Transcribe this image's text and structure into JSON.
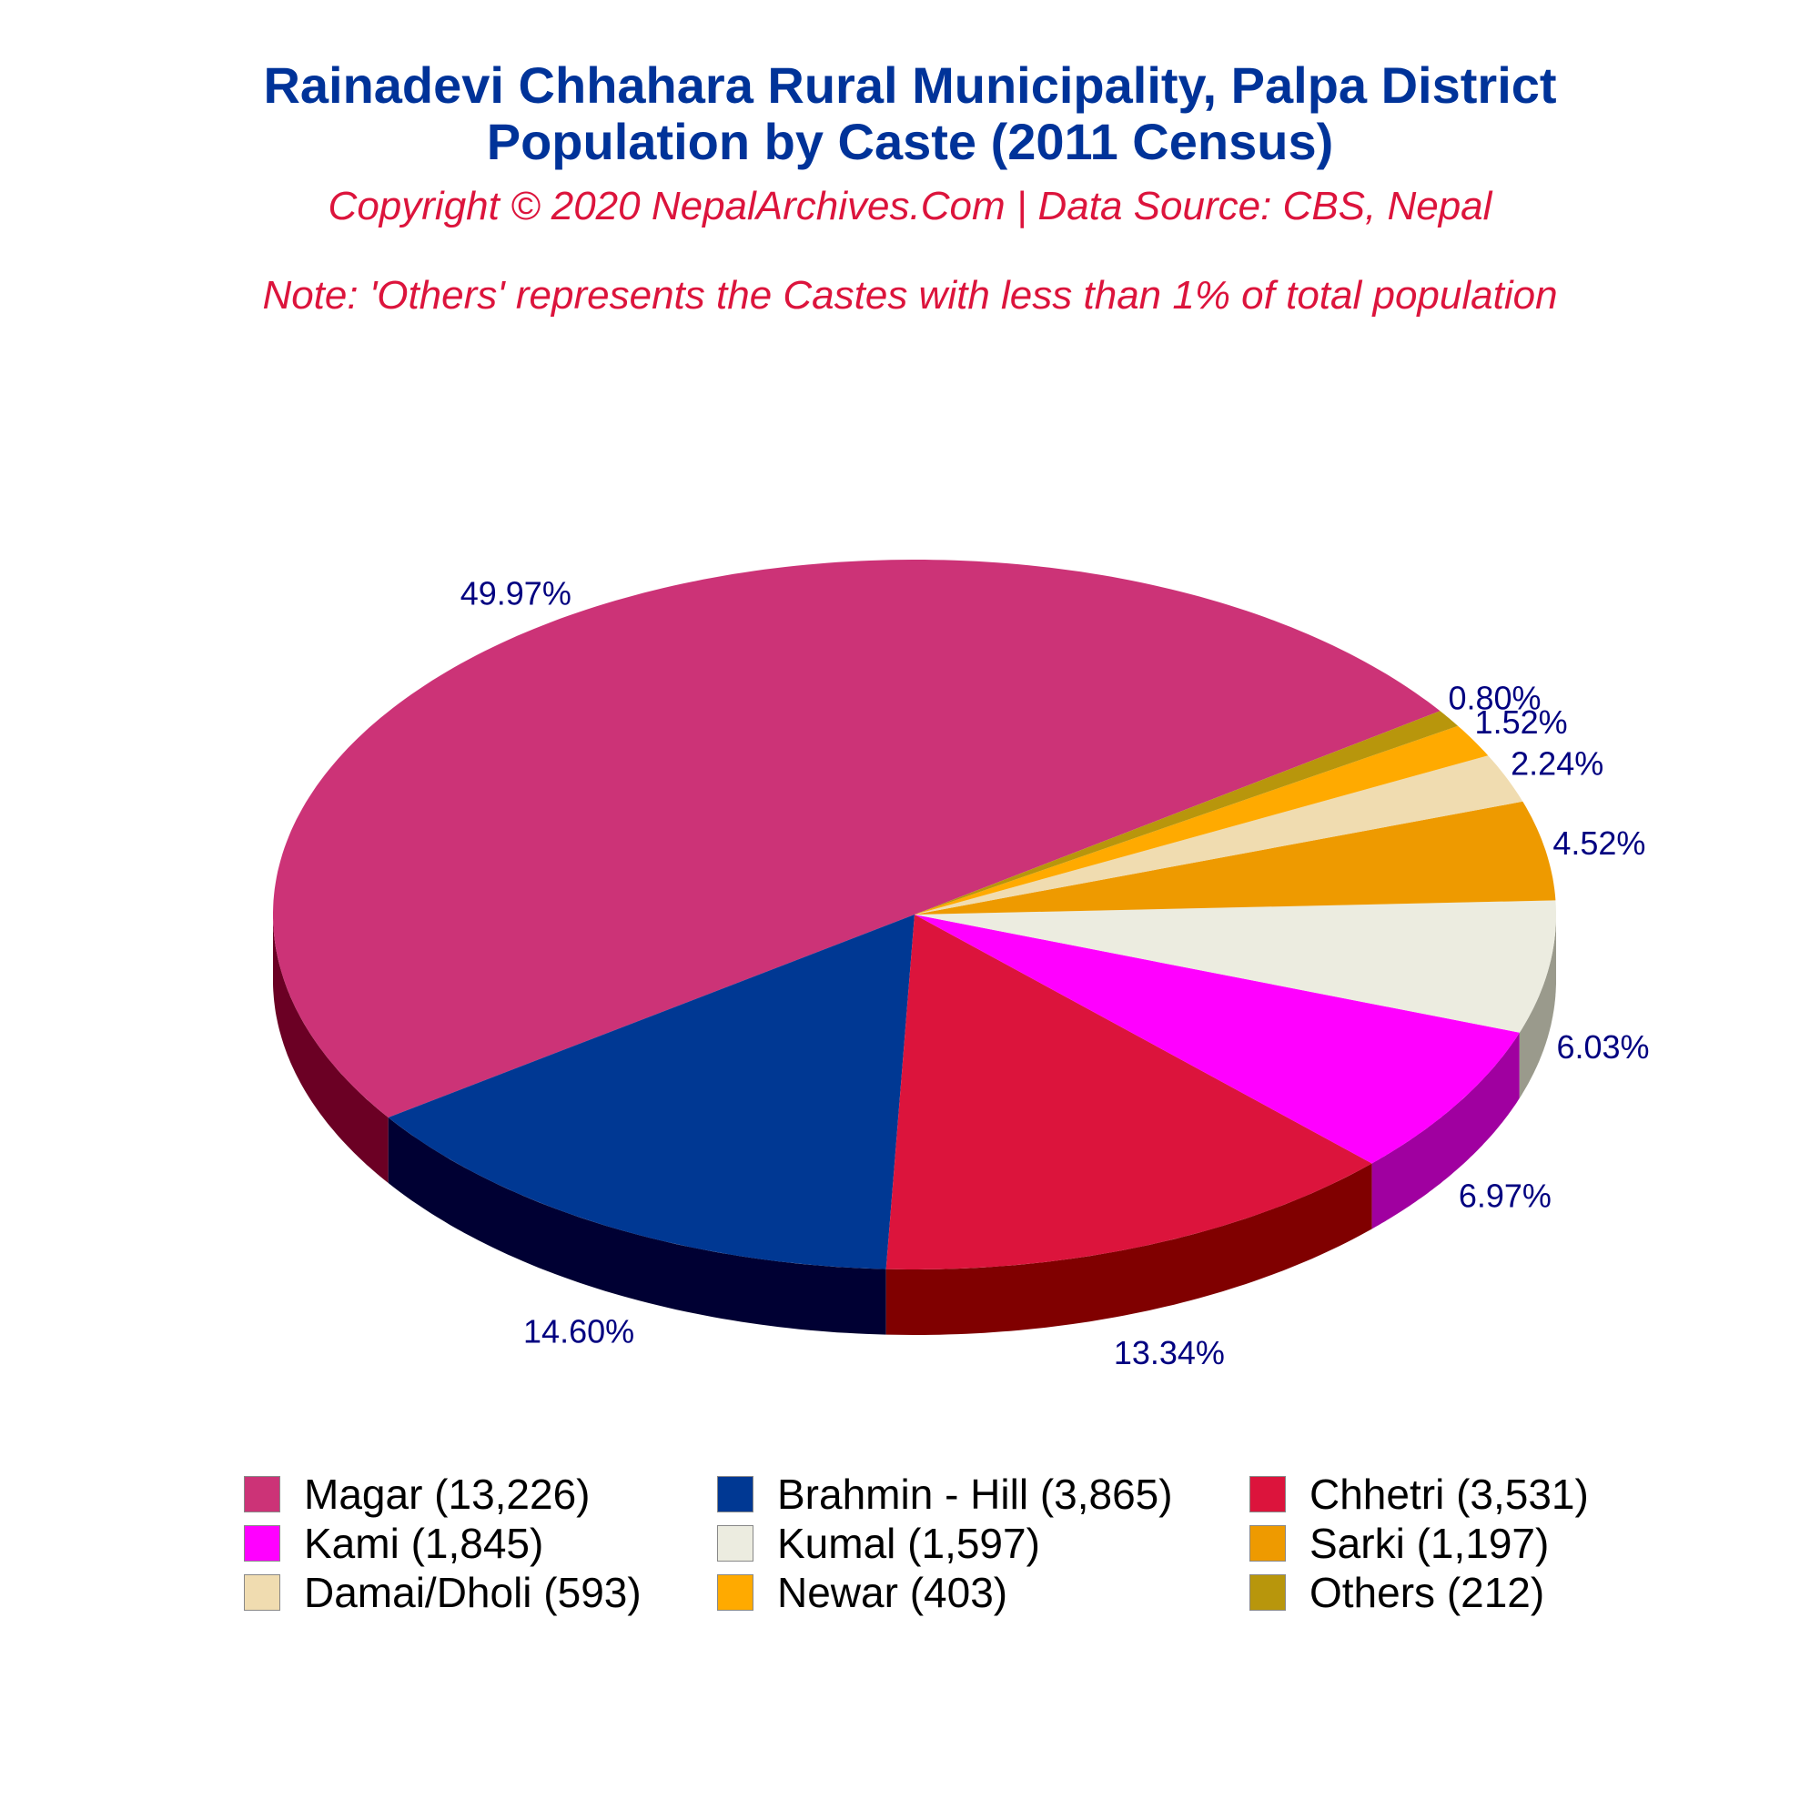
{
  "title_line1": "Rainadevi Chhahara Rural Municipality, Palpa District",
  "title_line2": "Population by Caste (2011 Census)",
  "subtitle": "Copyright © 2020 NepalArchives.Com | Data Source: CBS, Nepal",
  "note": "Note: 'Others' represents the Castes with less than 1% of total population",
  "chart_data": {
    "type": "pie",
    "slices": [
      {
        "name": "Magar",
        "value": 13226,
        "percent_label": "49.97%",
        "legend": "Magar (13,226)",
        "color": "#cc3377",
        "side_color": "#6b0024"
      },
      {
        "name": "Brahmin - Hill",
        "value": 3865,
        "percent_label": "14.60%",
        "legend": "Brahmin - Hill (3,865)",
        "color": "#003893",
        "side_color": "#000033"
      },
      {
        "name": "Chhetri",
        "value": 3531,
        "percent_label": "13.34%",
        "legend": "Chhetri (3,531)",
        "color": "#dc143c",
        "side_color": "#800000"
      },
      {
        "name": "Kami",
        "value": 1845,
        "percent_label": "6.97%",
        "legend": "Kami (1,845)",
        "color": "#ff00ff",
        "side_color": "#a000a0"
      },
      {
        "name": "Kumal",
        "value": 1597,
        "percent_label": "6.03%",
        "legend": "Kumal (1,597)",
        "color": "#ecece0",
        "side_color": "#9a9a8c"
      },
      {
        "name": "Sarki",
        "value": 1197,
        "percent_label": "4.52%",
        "legend": "Sarki (1,197)",
        "color": "#ee9a00",
        "side_color": "#8a5a00"
      },
      {
        "name": "Damai/Dholi",
        "value": 593,
        "percent_label": "2.24%",
        "legend": "Damai/Dholi (593)",
        "color": "#f0dcb0",
        "side_color": "#9a8a6a"
      },
      {
        "name": "Newar",
        "value": 403,
        "percent_label": "1.52%",
        "legend": "Newar (403)",
        "color": "#ffaa00",
        "side_color": "#a06a00"
      },
      {
        "name": "Others",
        "value": 212,
        "percent_label": "0.80%",
        "legend": "Others (212)",
        "color": "#b8960c",
        "side_color": "#6a5606"
      }
    ],
    "legend_position": "bottom"
  }
}
